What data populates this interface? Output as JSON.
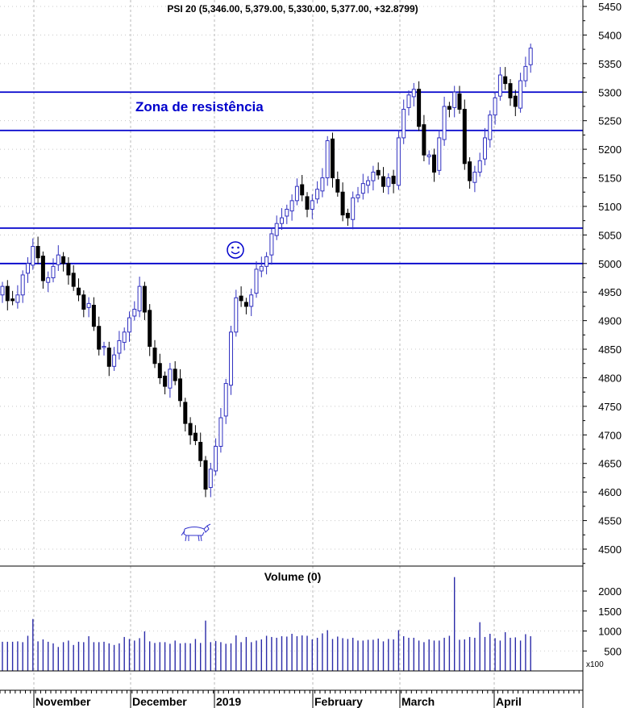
{
  "chart_data": {
    "type": "candlestick",
    "title": "PSI 20 (5,346.00, 5,379.00, 5,330.00, 5,377.00, +32.8799)",
    "last_bar": {
      "open": 5346.0,
      "high": 5379.0,
      "low": 5330.0,
      "close": 5377.0,
      "change": 32.8799
    },
    "price_axis": {
      "ylim": [
        4460,
        5460
      ],
      "ticks": [
        5450,
        5400,
        5350,
        5300,
        5250,
        5200,
        5150,
        5100,
        5050,
        5000,
        4950,
        4900,
        4850,
        4800,
        4750,
        4700,
        4650,
        4600,
        4550,
        4500
      ]
    },
    "months": [
      "November",
      "December",
      "2019",
      "February",
      "March",
      "April"
    ],
    "horizontal_lines": [
      5300,
      5233,
      5062,
      5000
    ],
    "zone_label": "Zona de resistência",
    "closes": [
      4960,
      4935,
      4935,
      4945,
      4980,
      5000,
      5030,
      5010,
      4970,
      4975,
      4995,
      5015,
      5000,
      4980,
      4960,
      4945,
      4920,
      4930,
      4890,
      4850,
      4855,
      4820,
      4840,
      4865,
      4880,
      4905,
      4920,
      4960,
      4915,
      4855,
      4825,
      4800,
      4785,
      4815,
      4795,
      4760,
      4720,
      4700,
      4690,
      4655,
      4605,
      4640,
      4680,
      4730,
      4790,
      4880,
      4940,
      4935,
      4925,
      4945,
      4990,
      4995,
      5012,
      5052,
      5070,
      5080,
      5095,
      5110,
      5135,
      5120,
      5095,
      5110,
      5130,
      5150,
      5215,
      5150,
      5125,
      5085,
      5080,
      5115,
      5120,
      5140,
      5145,
      5160,
      5155,
      5135,
      5150,
      5140,
      5220,
      5270,
      5295,
      5305,
      5240,
      5190,
      5190,
      5160,
      5220,
      5275,
      5270,
      5300,
      5270,
      5175,
      5145,
      5160,
      5180,
      5220,
      5260,
      5290,
      5330,
      5315,
      5290,
      5275,
      5320,
      5345,
      5377
    ],
    "volume_axis": {
      "ylim": [
        0,
        2500
      ],
      "ticks": [
        500,
        1000,
        1500,
        2000
      ],
      "unit": "x100",
      "title": "Volume (0)"
    },
    "volumes": [
      730,
      730,
      730,
      740,
      720,
      880,
      1300,
      740,
      790,
      730,
      690,
      600,
      720,
      760,
      650,
      730,
      720,
      870,
      720,
      720,
      730,
      690,
      650,
      690,
      850,
      800,
      760,
      820,
      990,
      740,
      700,
      720,
      720,
      680,
      760,
      690,
      700,
      690,
      800,
      700,
      1260,
      720,
      750,
      720,
      680,
      690,
      890,
      720,
      850,
      720,
      760,
      790,
      880,
      850,
      830,
      870,
      860,
      930,
      870,
      890,
      880,
      790,
      830,
      940,
      1020,
      800,
      860,
      820,
      800,
      830,
      760,
      760,
      780,
      780,
      810,
      740,
      800,
      790,
      1020,
      870,
      830,
      830,
      760,
      720,
      790,
      760,
      760,
      830,
      880,
      2350,
      780,
      790,
      850,
      830,
      1220,
      850,
      930,
      820,
      760,
      970,
      830,
      840,
      760,
      920,
      870
    ],
    "grid": true
  }
}
